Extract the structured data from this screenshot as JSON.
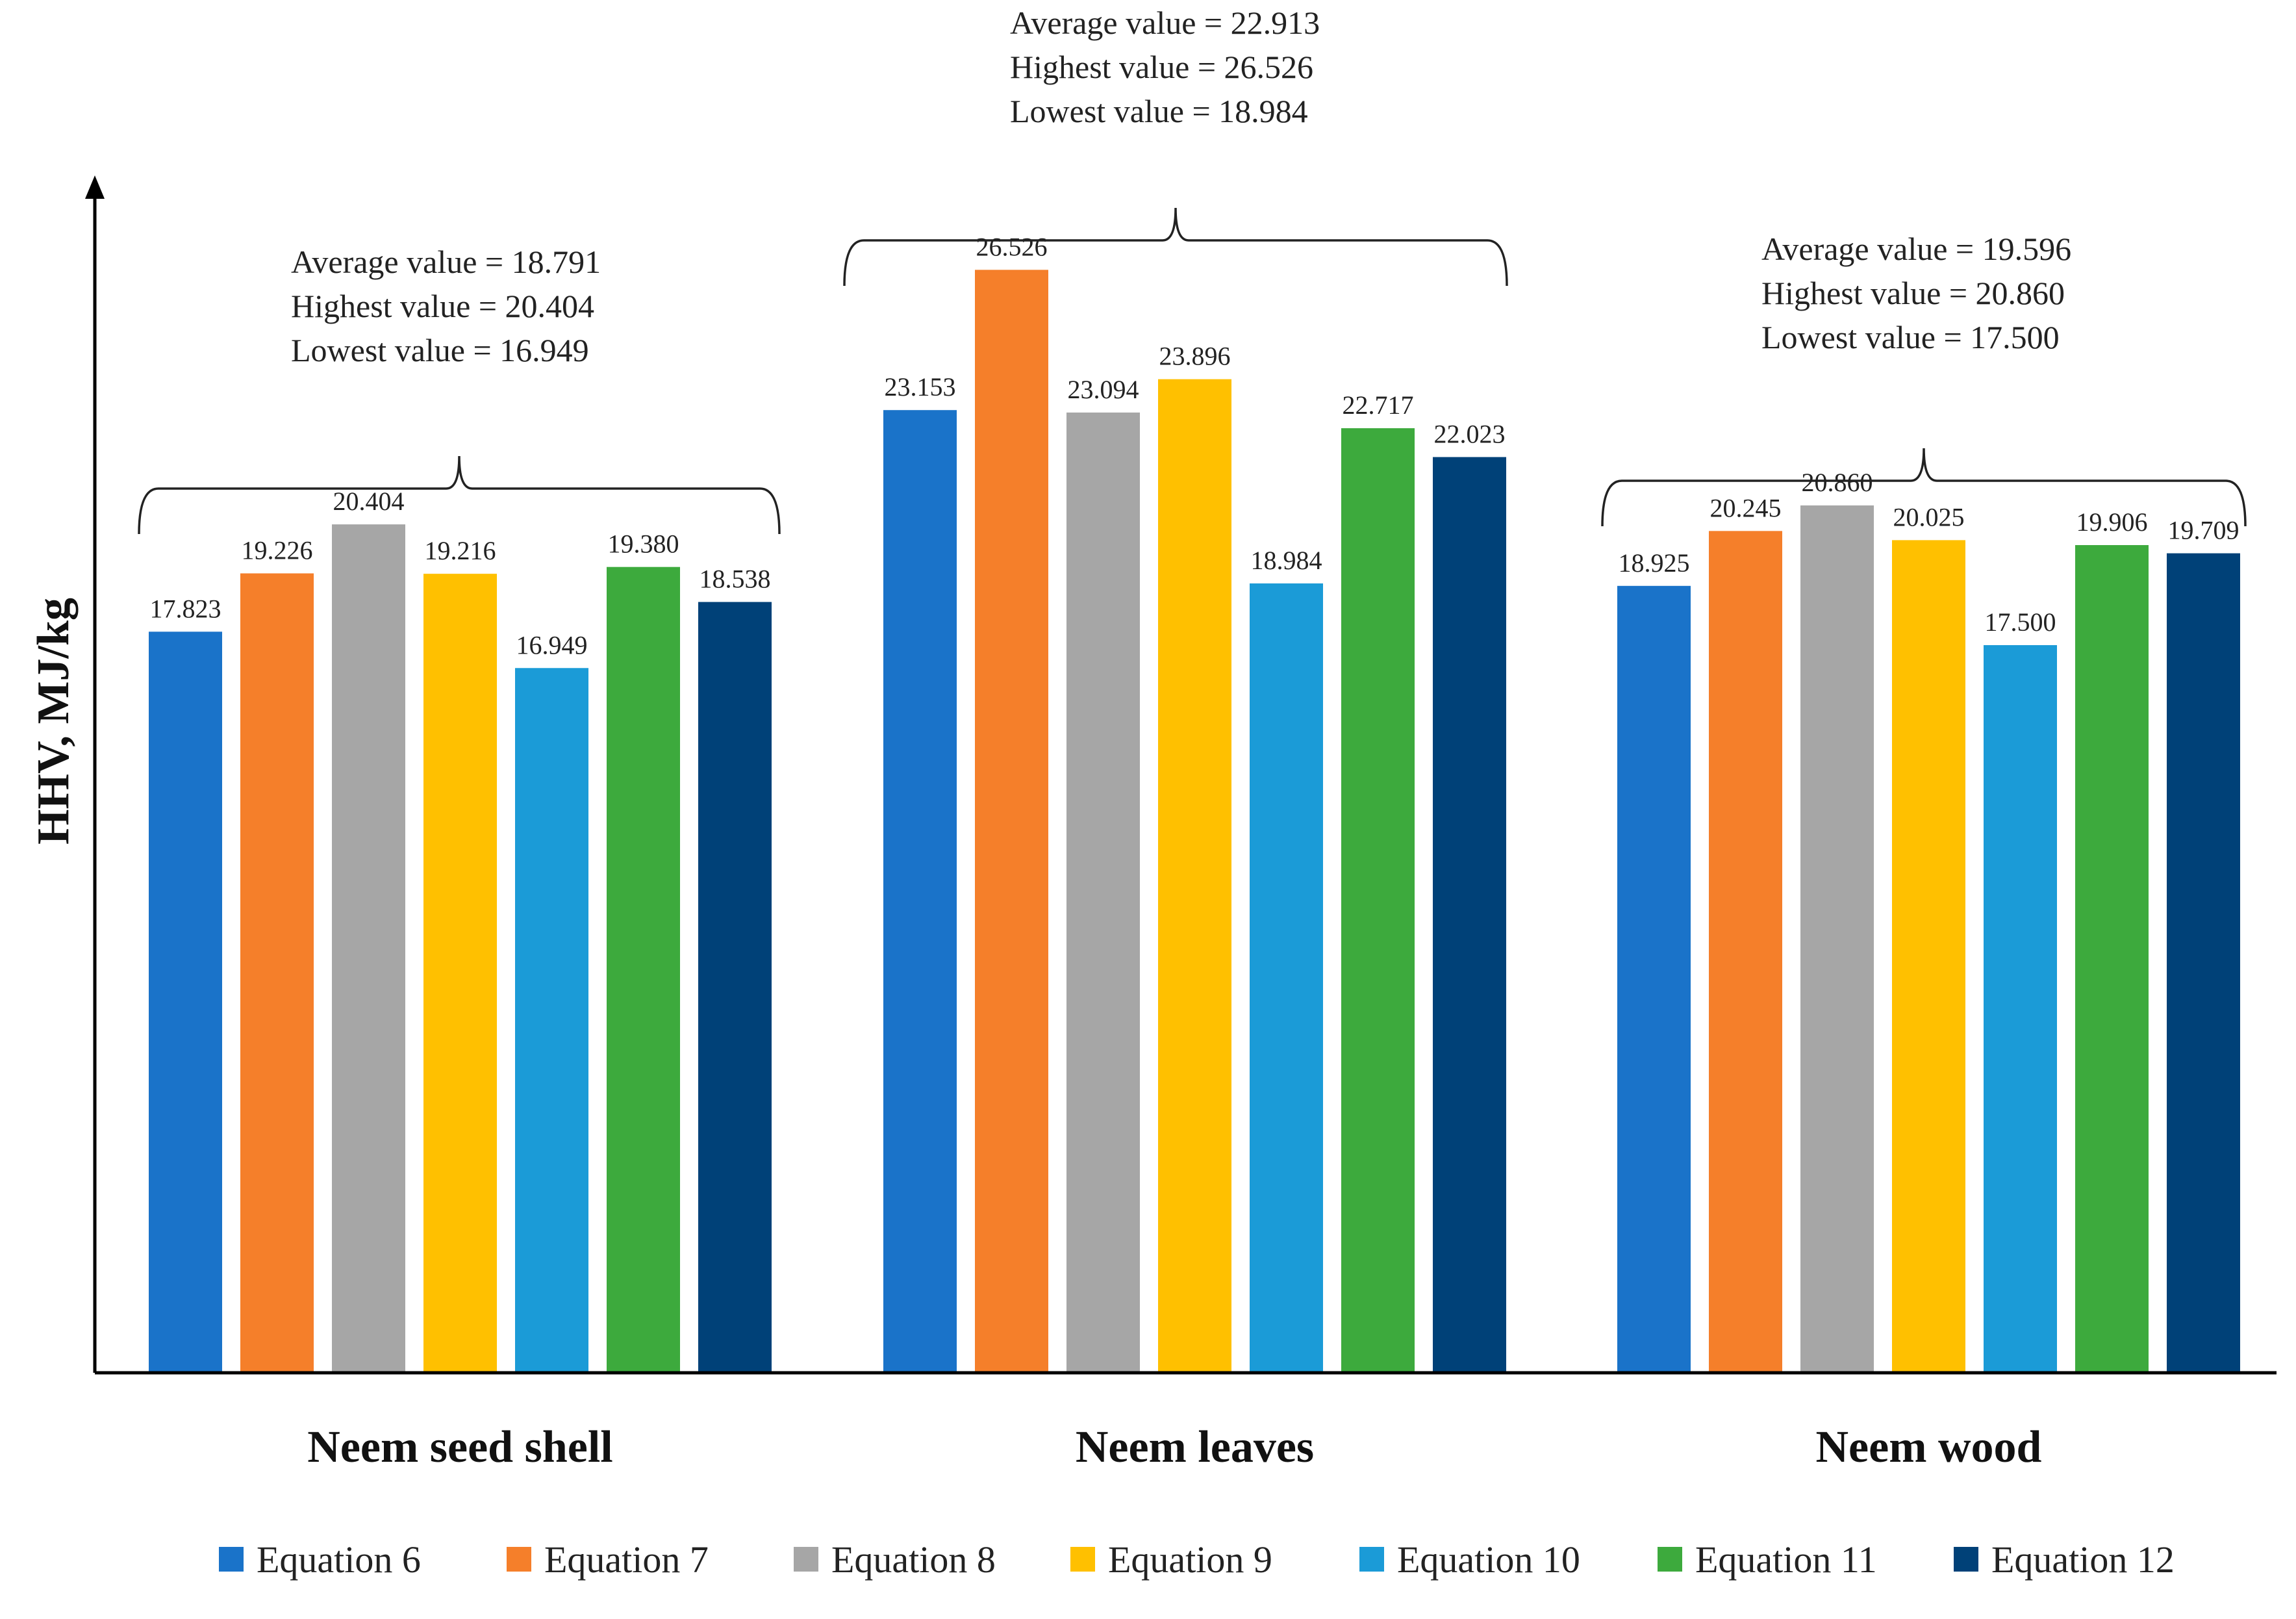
{
  "chart_data": {
    "type": "bar",
    "title": "",
    "xlabel": "",
    "ylabel": "HHV, MJ/kg",
    "ylim": [
      0,
      28.5
    ],
    "grid": false,
    "legend_position": "bottom",
    "categories": [
      "Neem seed shell",
      "Neem leaves",
      "Neem wood"
    ],
    "series": [
      {
        "name": "Equation 6",
        "color": "#1A73C9",
        "values": [
          17.823,
          23.153,
          18.925
        ],
        "labels": [
          "17.823",
          "23.153",
          "18.925"
        ]
      },
      {
        "name": "Equation 7",
        "color": "#F57F2A",
        "values": [
          19.226,
          26.526,
          20.245
        ],
        "labels": [
          "19.226",
          "26.526",
          "20.245"
        ]
      },
      {
        "name": "Equation 8",
        "color": "#A6A6A6",
        "values": [
          20.404,
          23.094,
          20.86
        ],
        "labels": [
          "20.404",
          "23.094",
          "20.860"
        ]
      },
      {
        "name": "Equation 9",
        "color": "#FFC000",
        "values": [
          19.216,
          23.896,
          20.025
        ],
        "labels": [
          "19.216",
          "23.896",
          "20.025"
        ]
      },
      {
        "name": "Equation 10",
        "color": "#1B9BD7",
        "values": [
          16.949,
          18.984,
          17.5
        ],
        "labels": [
          "16.949",
          "18.984",
          "17.500"
        ]
      },
      {
        "name": "Equation 11",
        "color": "#3DAA3D",
        "values": [
          19.38,
          22.717,
          19.906
        ],
        "labels": [
          "19.380",
          "22.717",
          "19.906"
        ]
      },
      {
        "name": "Equation 12",
        "color": "#004178",
        "values": [
          18.538,
          22.023,
          19.709
        ],
        "labels": [
          "18.538",
          "22.023",
          "19.709"
        ]
      }
    ],
    "annotations": [
      {
        "category": "Neem seed shell",
        "lines": [
          "Average value = 18.791",
          "Highest value = 20.404",
          "Lowest value = 16.949"
        ]
      },
      {
        "category": "Neem leaves",
        "lines": [
          "Average value = 22.913",
          "Highest value = 26.526",
          "Lowest value = 18.984"
        ]
      },
      {
        "category": "Neem wood",
        "lines": [
          "Average value = 19.596",
          "Highest value = 20.860",
          "Lowest value = 17.500"
        ]
      }
    ]
  }
}
